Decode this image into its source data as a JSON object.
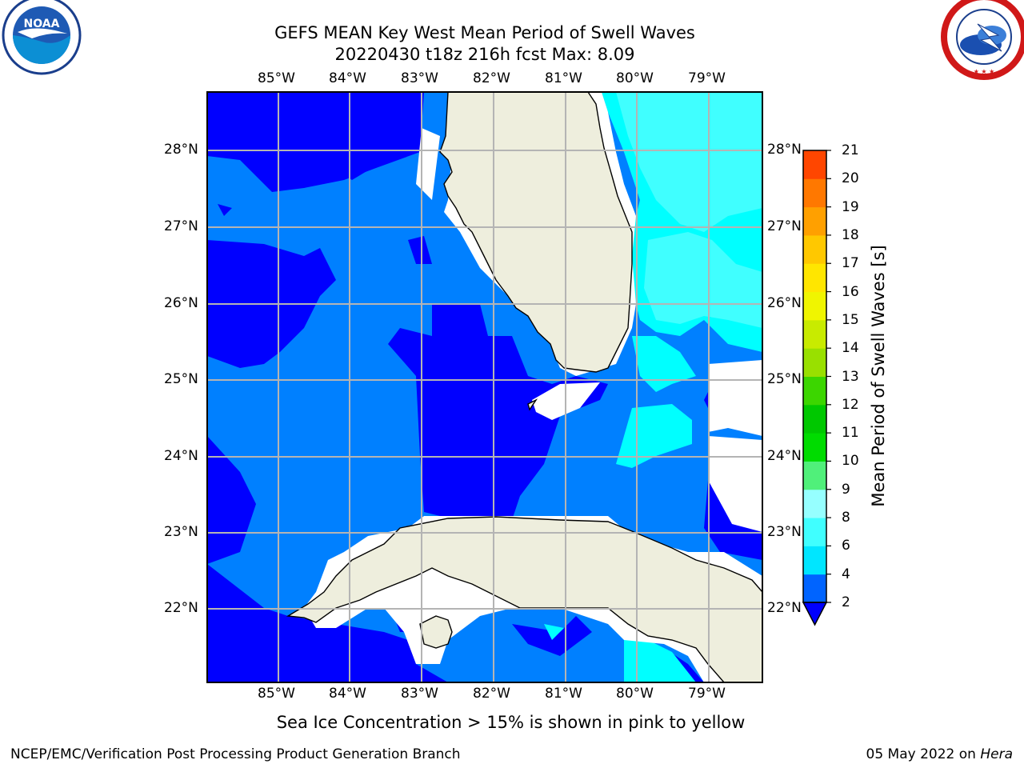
{
  "title_line1": "GEFS MEAN Key West Mean Period of Swell Waves",
  "title_line2": "20220430 t18z 216h fcst   Max: 8.09",
  "lon_labels": [
    "85°W",
    "84°W",
    "83°W",
    "82°W",
    "81°W",
    "80°W",
    "79°W"
  ],
  "lat_labels": [
    "28°N",
    "27°N",
    "26°N",
    "25°N",
    "24°N",
    "23°N",
    "22°N"
  ],
  "colorbar": {
    "label": "Mean Period of Swell Waves [s]",
    "ticks": [
      "2",
      "4",
      "6",
      "8",
      "9",
      "10",
      "11",
      "12",
      "13",
      "14",
      "15",
      "16",
      "17",
      "18",
      "19",
      "20",
      "21"
    ],
    "colors": [
      "#0064ff",
      "#00e6ff",
      "#40ffff",
      "#96ffff",
      "#50f07a",
      "#00dc00",
      "#00c800",
      "#3cd600",
      "#99e000",
      "#c8eb00",
      "#f0f500",
      "#ffe600",
      "#ffc800",
      "#ffa000",
      "#ff7800",
      "#ff4600",
      "#ff0000"
    ],
    "under_color": "#0000ff"
  },
  "sea_ice_note": "Sea Ice Concentration > 15% is shown in pink to yellow",
  "footer_left": "NCEP/EMC/Verification Post Processing Product Generation Branch",
  "footer_date": "05 May 2022 on ",
  "footer_host": "Hera",
  "map_colors": {
    "land": "#eeeedd",
    "dark_blue": "#0000ff",
    "medium_blue": "#0080ff",
    "cyan": "#00ffff",
    "light_cyan": "#40ffff",
    "grid": "#b4b4b4"
  },
  "logos": {
    "left": "noaa-logo",
    "right": "nws-logo"
  }
}
